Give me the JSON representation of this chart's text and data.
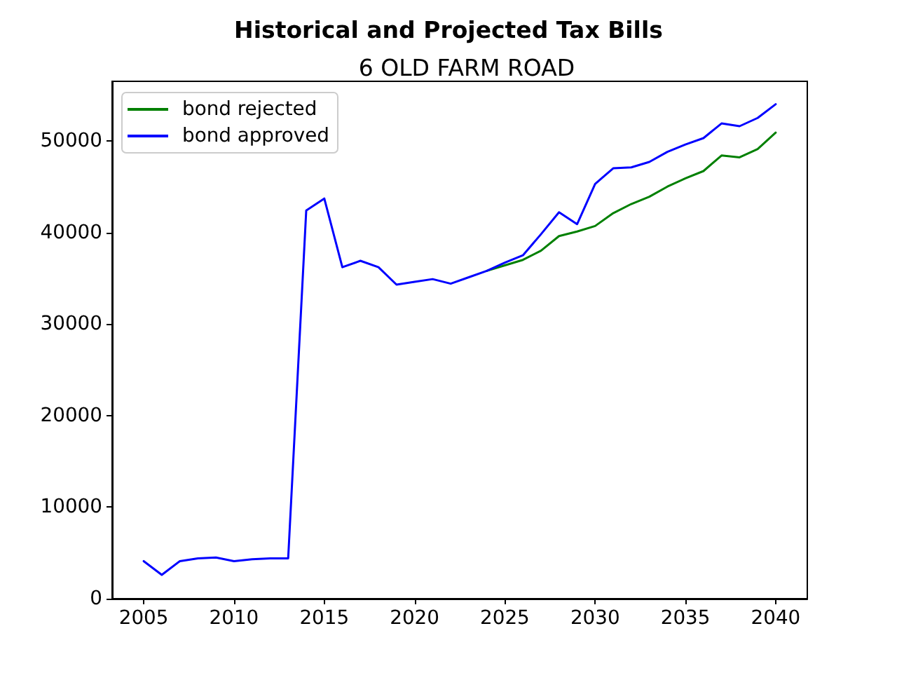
{
  "chart_data": {
    "type": "line",
    "title": "Historical and Projected Tax Bills",
    "subtitle": "6 OLD FARM ROAD",
    "x": [
      2005,
      2006,
      2007,
      2008,
      2009,
      2010,
      2011,
      2012,
      2013,
      2014,
      2015,
      2016,
      2017,
      2018,
      2019,
      2020,
      2021,
      2022,
      2023,
      2024,
      2025,
      2026,
      2027,
      2028,
      2029,
      2030,
      2031,
      2032,
      2033,
      2034,
      2035,
      2036,
      2037,
      2038,
      2039,
      2040
    ],
    "series": [
      {
        "name": "bond rejected",
        "color": "#008000",
        "values": [
          null,
          null,
          null,
          null,
          null,
          null,
          null,
          null,
          null,
          null,
          null,
          null,
          null,
          null,
          null,
          null,
          null,
          null,
          null,
          35800,
          36400,
          37000,
          38000,
          39600,
          40100,
          40700,
          42100,
          43100,
          43900,
          45000,
          45900,
          46700,
          48400,
          48200,
          49100,
          50900
        ]
      },
      {
        "name": "bond approved",
        "color": "#0000ff",
        "values": [
          4100,
          2600,
          4100,
          4400,
          4500,
          4100,
          4300,
          4400,
          4400,
          42400,
          43700,
          36200,
          36900,
          36200,
          34300,
          34600,
          34900,
          34400,
          35100,
          35800,
          36700,
          37500,
          39800,
          42200,
          40900,
          45300,
          47000,
          47100,
          47700,
          48800,
          49600,
          50300,
          51900,
          51600,
          52500,
          54000
        ]
      }
    ],
    "xlim": [
      2003.25,
      2041.75
    ],
    "xticks": [
      2005,
      2010,
      2015,
      2020,
      2025,
      2030,
      2035,
      2040
    ],
    "ylim": [
      0,
      56500
    ],
    "yticks": [
      0,
      10000,
      20000,
      30000,
      40000,
      50000
    ],
    "legend": "top left"
  }
}
